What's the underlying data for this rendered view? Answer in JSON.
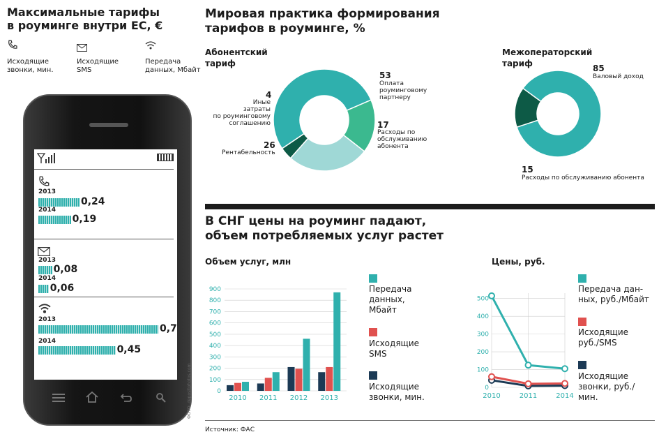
{
  "colors": {
    "teal": "#2fb0ad",
    "green": "#3bb98f",
    "lightteal": "#9fd8d6",
    "darkgreen": "#0d5a46",
    "red": "#e0514f",
    "navy": "#1c3a55"
  },
  "left": {
    "title1": "Максимальные тарифы",
    "title2": "в роуминге внутри ЕС, €",
    "cat_calls_1": "Исходящие",
    "cat_calls_2": "звонки, мин.",
    "cat_sms_1": "Исходящие",
    "cat_sms_2": "SMS",
    "cat_data_1": "Передача",
    "cat_data_2": "данных, Мбайт",
    "icons": [
      "phone-icon",
      "envelope-icon",
      "wifi-icon"
    ],
    "credit": "ФОТО: depositphotos.com"
  },
  "phone_screen": {
    "groups": [
      {
        "icon": "phone-icon",
        "rows": [
          {
            "year": "2013",
            "value": "0,24",
            "num": 0.24
          },
          {
            "year": "2014",
            "value": "0,19",
            "num": 0.19
          }
        ]
      },
      {
        "icon": "envelope-icon",
        "rows": [
          {
            "year": "2013",
            "value": "0,08",
            "num": 0.08
          },
          {
            "year": "2014",
            "value": "0,06",
            "num": 0.06
          }
        ]
      },
      {
        "icon": "wifi-icon",
        "rows": [
          {
            "year": "2013",
            "value": "0,7",
            "num": 0.7
          },
          {
            "year": "2014",
            "value": "0,45",
            "num": 0.45
          }
        ]
      }
    ]
  },
  "world": {
    "title1": "Мировая практика формирования",
    "title2": "тарифов в  роуминге, %",
    "sub_title1": "Абонентский",
    "sub_title2": "тариф",
    "sub_labels": [
      {
        "value": "53",
        "l1": "Оплата",
        "l2": "роуминговому",
        "l3": "партнеру"
      },
      {
        "value": "17",
        "l1": "Расходы по",
        "l2": "обслуживанию",
        "l3": "абонента"
      },
      {
        "value": "26",
        "l1": "Рентабельность"
      },
      {
        "value": "4",
        "l1": "Иные",
        "l2": "затраты",
        "l3": "по роуминговому",
        "l4": "соглашению"
      }
    ],
    "inter_title1": "Межоператорский",
    "inter_title2": "тариф",
    "inter_labels": [
      {
        "value": "85",
        "l1": "Валовый доход"
      },
      {
        "value": "15",
        "l1": "Расходы по обслуживанию абонента"
      }
    ]
  },
  "cis": {
    "title1": "В СНГ цены на роуминг падают,",
    "title2": "объем потребляемых услуг растет",
    "vol_title": "Объем услуг, млн",
    "price_title": "Цены, руб.",
    "vol_legend": [
      {
        "l1": "Передача",
        "l2": "данных,",
        "l3": "Мбайт"
      },
      {
        "l1": "Исходящие",
        "l2": "SMS"
      },
      {
        "l1": "Исходящие",
        "l2": "звонки, мин."
      }
    ],
    "price_legend": [
      {
        "l1": "Передача дан-",
        "l2": "ных, руб./Мбайт"
      },
      {
        "l1": "Исходящие",
        "l2": "руб./SMS"
      },
      {
        "l1": "Исходящие",
        "l2": "звонки, руб./",
        "l3": "мин."
      }
    ]
  },
  "source": "Источник: ФАС",
  "chart_data": [
    {
      "type": "pie",
      "title": "Абонентский тариф",
      "labels": [
        "Оплата роуминговому партнеру",
        "Расходы по обслуживанию абонента",
        "Рентабельность",
        "Иные затраты по роуминговому соглашению"
      ],
      "values": [
        53,
        17,
        26,
        4
      ],
      "colors": [
        "#2fb0ad",
        "#3bb98f",
        "#9fd8d6",
        "#0d5a46"
      ]
    },
    {
      "type": "pie",
      "title": "Межоператорский тариф",
      "labels": [
        "Валовый доход",
        "Расходы по обслуживанию абонента"
      ],
      "values": [
        85,
        15
      ],
      "colors": [
        "#2fb0ad",
        "#0d5a46"
      ]
    },
    {
      "type": "bar",
      "title": "Объем услуг, млн",
      "categories": [
        "2010",
        "2011",
        "2012",
        "2013"
      ],
      "ylim": [
        0,
        900
      ],
      "yticks": [
        0,
        100,
        200,
        300,
        400,
        500,
        600,
        700,
        800,
        900
      ],
      "series": [
        {
          "name": "Исходящие звонки, мин.",
          "color": "#1c3a55",
          "values": [
            50,
            65,
            210,
            165
          ]
        },
        {
          "name": "Исходящие SMS",
          "color": "#e0514f",
          "values": [
            70,
            115,
            195,
            210
          ]
        },
        {
          "name": "Передача данных, Мбайт",
          "color": "#2fb0ad",
          "values": [
            80,
            165,
            460,
            870
          ]
        }
      ]
    },
    {
      "type": "line",
      "title": "Цены, руб.",
      "x": [
        "2010",
        "2011",
        "2014"
      ],
      "ylim": [
        0,
        550
      ],
      "yticks": [
        0,
        100,
        200,
        300,
        400,
        500
      ],
      "series": [
        {
          "name": "Передача данных, руб./Мбайт",
          "color": "#2fb0ad",
          "values": [
            515,
            125,
            105
          ]
        },
        {
          "name": "Исходящие руб./SMS",
          "color": "#e0514f",
          "values": [
            60,
            20,
            22
          ]
        },
        {
          "name": "Исходящие звонки, руб./мин.",
          "color": "#1c3a55",
          "values": [
            40,
            8,
            10
          ]
        }
      ]
    }
  ]
}
